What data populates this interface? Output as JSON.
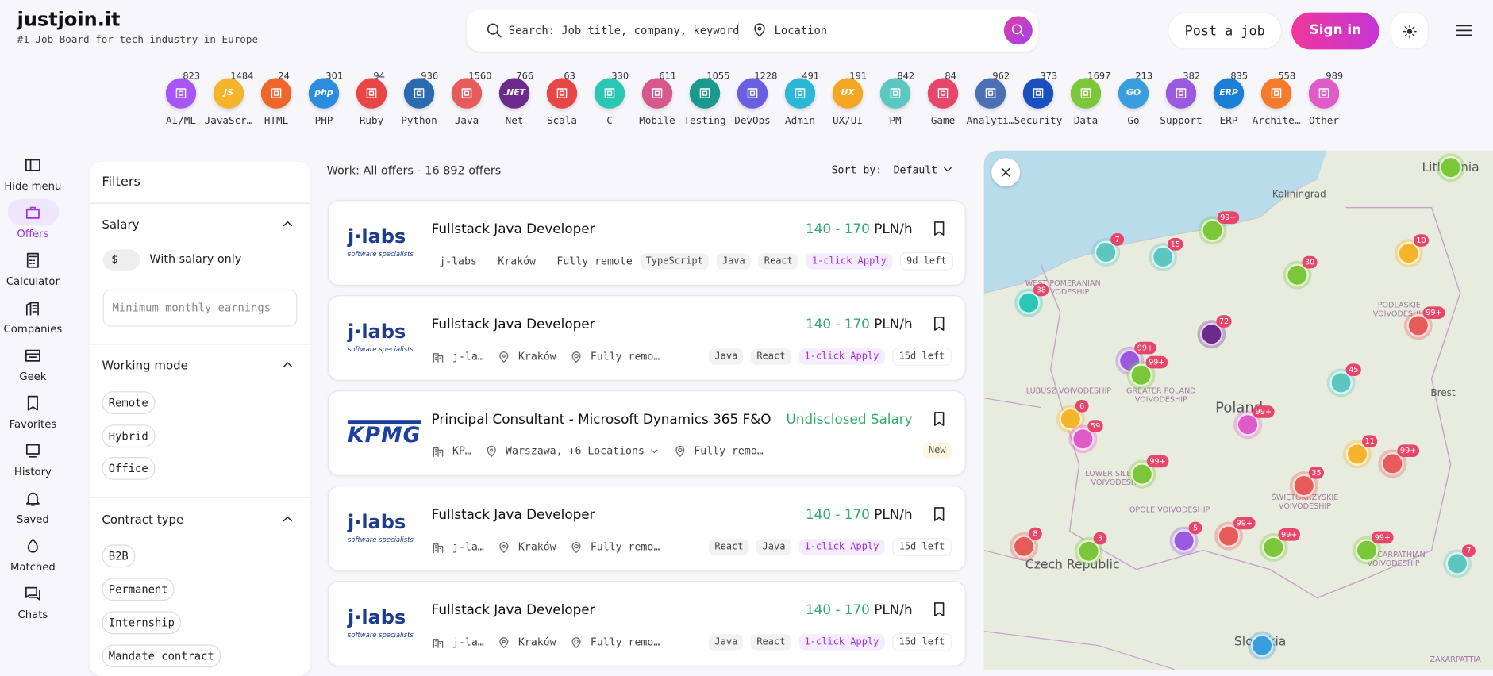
{
  "header": {
    "logo": "justjoin.it",
    "tagline": "#1 Job Board for tech industry in Europe",
    "search_placeholder": "Search: Job title, company, keyword",
    "location_placeholder": "Location",
    "post_job": "Post a job",
    "sign_in": "Sign in"
  },
  "categories": [
    {
      "label": "AI/ML",
      "count": "823",
      "color": "#a855f7"
    },
    {
      "label": "JavaScr…",
      "count": "1484",
      "color": "#f5b52a",
      "icon": "JS"
    },
    {
      "label": "HTML",
      "count": "24",
      "color": "#f06529"
    },
    {
      "label": "PHP",
      "count": "301",
      "color": "#2b8de0",
      "icon": "php"
    },
    {
      "label": "Ruby",
      "count": "94",
      "color": "#e84545"
    },
    {
      "label": "Python",
      "count": "936",
      "color": "#2a6bb0"
    },
    {
      "label": "Java",
      "count": "1560",
      "color": "#e85b5b"
    },
    {
      "label": "Net",
      "count": "766",
      "color": "#6b2a8c",
      "icon": ".NET"
    },
    {
      "label": "Scala",
      "count": "63",
      "color": "#e84545"
    },
    {
      "label": "C",
      "count": "330",
      "color": "#2bc7b5"
    },
    {
      "label": "Mobile",
      "count": "611",
      "color": "#d6588c"
    },
    {
      "label": "Testing",
      "count": "1055",
      "color": "#1a9a8c"
    },
    {
      "label": "DevOps",
      "count": "1228",
      "color": "#6a5fe0"
    },
    {
      "label": "Admin",
      "count": "491",
      "color": "#2bb7d6"
    },
    {
      "label": "UX/UI",
      "count": "191",
      "color": "#f5a623",
      "icon": "UX"
    },
    {
      "label": "PM",
      "count": "842",
      "color": "#5cc7c0"
    },
    {
      "label": "Game",
      "count": "84",
      "color": "#e8456a"
    },
    {
      "label": "Analyti…",
      "count": "962",
      "color": "#4a6fb5"
    },
    {
      "label": "Security",
      "count": "373",
      "color": "#1a4fc0"
    },
    {
      "label": "Data",
      "count": "1697",
      "color": "#7cc63a"
    },
    {
      "label": "Go",
      "count": "213",
      "color": "#3a9de0",
      "icon": "GO"
    },
    {
      "label": "Support",
      "count": "382",
      "color": "#9a5ae0"
    },
    {
      "label": "ERP",
      "count": "835",
      "color": "#1a7fd6",
      "icon": "ERP"
    },
    {
      "label": "Archite…",
      "count": "558",
      "color": "#f57a2a"
    },
    {
      "label": "Other",
      "count": "989",
      "color": "#e05ac8"
    }
  ],
  "sidebar": [
    "Hide menu",
    "Offers",
    "Calculator",
    "Companies",
    "Geek",
    "Favorites",
    "History",
    "Saved",
    "Matched",
    "Chats"
  ],
  "filters": {
    "title": "Filters",
    "salary": {
      "title": "Salary",
      "toggle": "$",
      "toggle_label": "With salary only",
      "input_placeholder": "Minimum monthly earnings"
    },
    "working_mode": {
      "title": "Working mode",
      "options": [
        "Remote",
        "Hybrid",
        "Office"
      ]
    },
    "contract_type": {
      "title": "Contract type",
      "options": [
        "B2B",
        "Permanent",
        "Internship",
        "Mandate contract"
      ]
    }
  },
  "listing": {
    "summary": "Work: All offers - 16 892 offers",
    "sort_label": "Sort by:",
    "sort_value": "Default"
  },
  "jobs": [
    {
      "title": "Fullstack Java Developer",
      "salary": "140 - 170",
      "unit": "PLN/h",
      "logo": "j·labs",
      "logo_sub": "software specialists",
      "company": "j-labs",
      "location": "Kraków",
      "mode": "Fully remote",
      "tags": [
        "TypeScript",
        "Java",
        "React"
      ],
      "apply": "1-click Apply",
      "badge": "9d left"
    },
    {
      "title": "Fullstack Java Developer",
      "salary": "140 - 170",
      "unit": "PLN/h",
      "logo": "j·labs",
      "logo_sub": "software specialists",
      "company": "j-la…",
      "location": "Kraków",
      "mode": "Fully remo…",
      "tags": [
        "Java",
        "React"
      ],
      "apply": "1-click Apply",
      "badge": "15d left"
    },
    {
      "title": "Principal Consultant - Microsoft Dynamics 365 F&O",
      "salary": "Undisclosed Salary",
      "logo": "KPMG",
      "company": "KP…",
      "location": "Warszawa, +6 Locations",
      "mode": "Fully remo…",
      "tags": [],
      "badge": "New"
    },
    {
      "title": "Fullstack Java Developer",
      "salary": "140 - 170",
      "unit": "PLN/h",
      "logo": "j·labs",
      "logo_sub": "software specialists",
      "company": "j-la…",
      "location": "Kraków",
      "mode": "Fully remo…",
      "tags": [
        "React",
        "Java"
      ],
      "apply": "1-click Apply",
      "badge": "15d left"
    },
    {
      "title": "Fullstack Java Developer",
      "salary": "140 - 170",
      "unit": "PLN/h",
      "logo": "j·labs",
      "logo_sub": "software specialists",
      "company": "j-la…",
      "location": "Kraków",
      "mode": "Fully remo…",
      "tags": [
        "Java",
        "React"
      ],
      "apply": "1-click Apply",
      "badge": "15d left"
    }
  ],
  "map": {
    "labels": [
      "Lithuania",
      "Kaliningrad",
      "WEST POMERANIAN VOIVODESHIP",
      "PODLASKIE VOIVODESHIP",
      "LUBUSZ VOIVODESHIP",
      "GREATER POLAND VOIVODESHIP",
      "Poland",
      "Brest",
      "LOWER SILESIAN VOIVODESHIP",
      "OPOLE VOIVODESHIP",
      "ŚWIĘTOKRZYSKIE VOIVODESHIP",
      "SUBCARPATHIAN VOIVODESHIP",
      "Czech Republic",
      "Slovakia",
      "ZAKARPATTIA"
    ],
    "markers": [
      {
        "count": "7",
        "color": "#5cc7c0"
      },
      {
        "count": "15",
        "color": "#5cc7c0"
      },
      {
        "count": "99+",
        "color": "#7cc63a"
      },
      {
        "count": "10",
        "color": "#f5b52a"
      },
      {
        "count": "30",
        "color": "#7cc63a"
      },
      {
        "count": "38",
        "color": "#2bc7b5"
      },
      {
        "count": "72",
        "color": "#6b2a8c"
      },
      {
        "count": "99+",
        "color": "#9a5ae0"
      },
      {
        "count": "99+",
        "color": "#7cc63a"
      },
      {
        "count": "99+",
        "color": "#e85b5b"
      },
      {
        "count": "45",
        "color": "#5cc7c0"
      },
      {
        "count": "6",
        "color": "#f5b52a"
      },
      {
        "count": "59",
        "color": "#e05ac8"
      },
      {
        "count": "99+",
        "color": "#e05ac8"
      },
      {
        "count": "11",
        "color": "#f5b52a"
      },
      {
        "count": "99+",
        "color": "#e85b5b"
      },
      {
        "count": "99+",
        "color": "#7cc63a"
      },
      {
        "count": "35",
        "color": "#e85b5b"
      },
      {
        "count": "99+",
        "color": "#e85b5b"
      },
      {
        "count": "5",
        "color": "#9a5ae0"
      },
      {
        "count": "99+",
        "color": "#7cc63a"
      },
      {
        "count": "8",
        "color": "#e85b5b"
      },
      {
        "count": "3",
        "color": "#7cc63a"
      },
      {
        "count": "99+",
        "color": "#7cc63a"
      },
      {
        "count": "7",
        "color": "#5cc7c0"
      },
      {
        "color": "#7cc63a"
      },
      {
        "color": "#3a9de0"
      }
    ]
  }
}
